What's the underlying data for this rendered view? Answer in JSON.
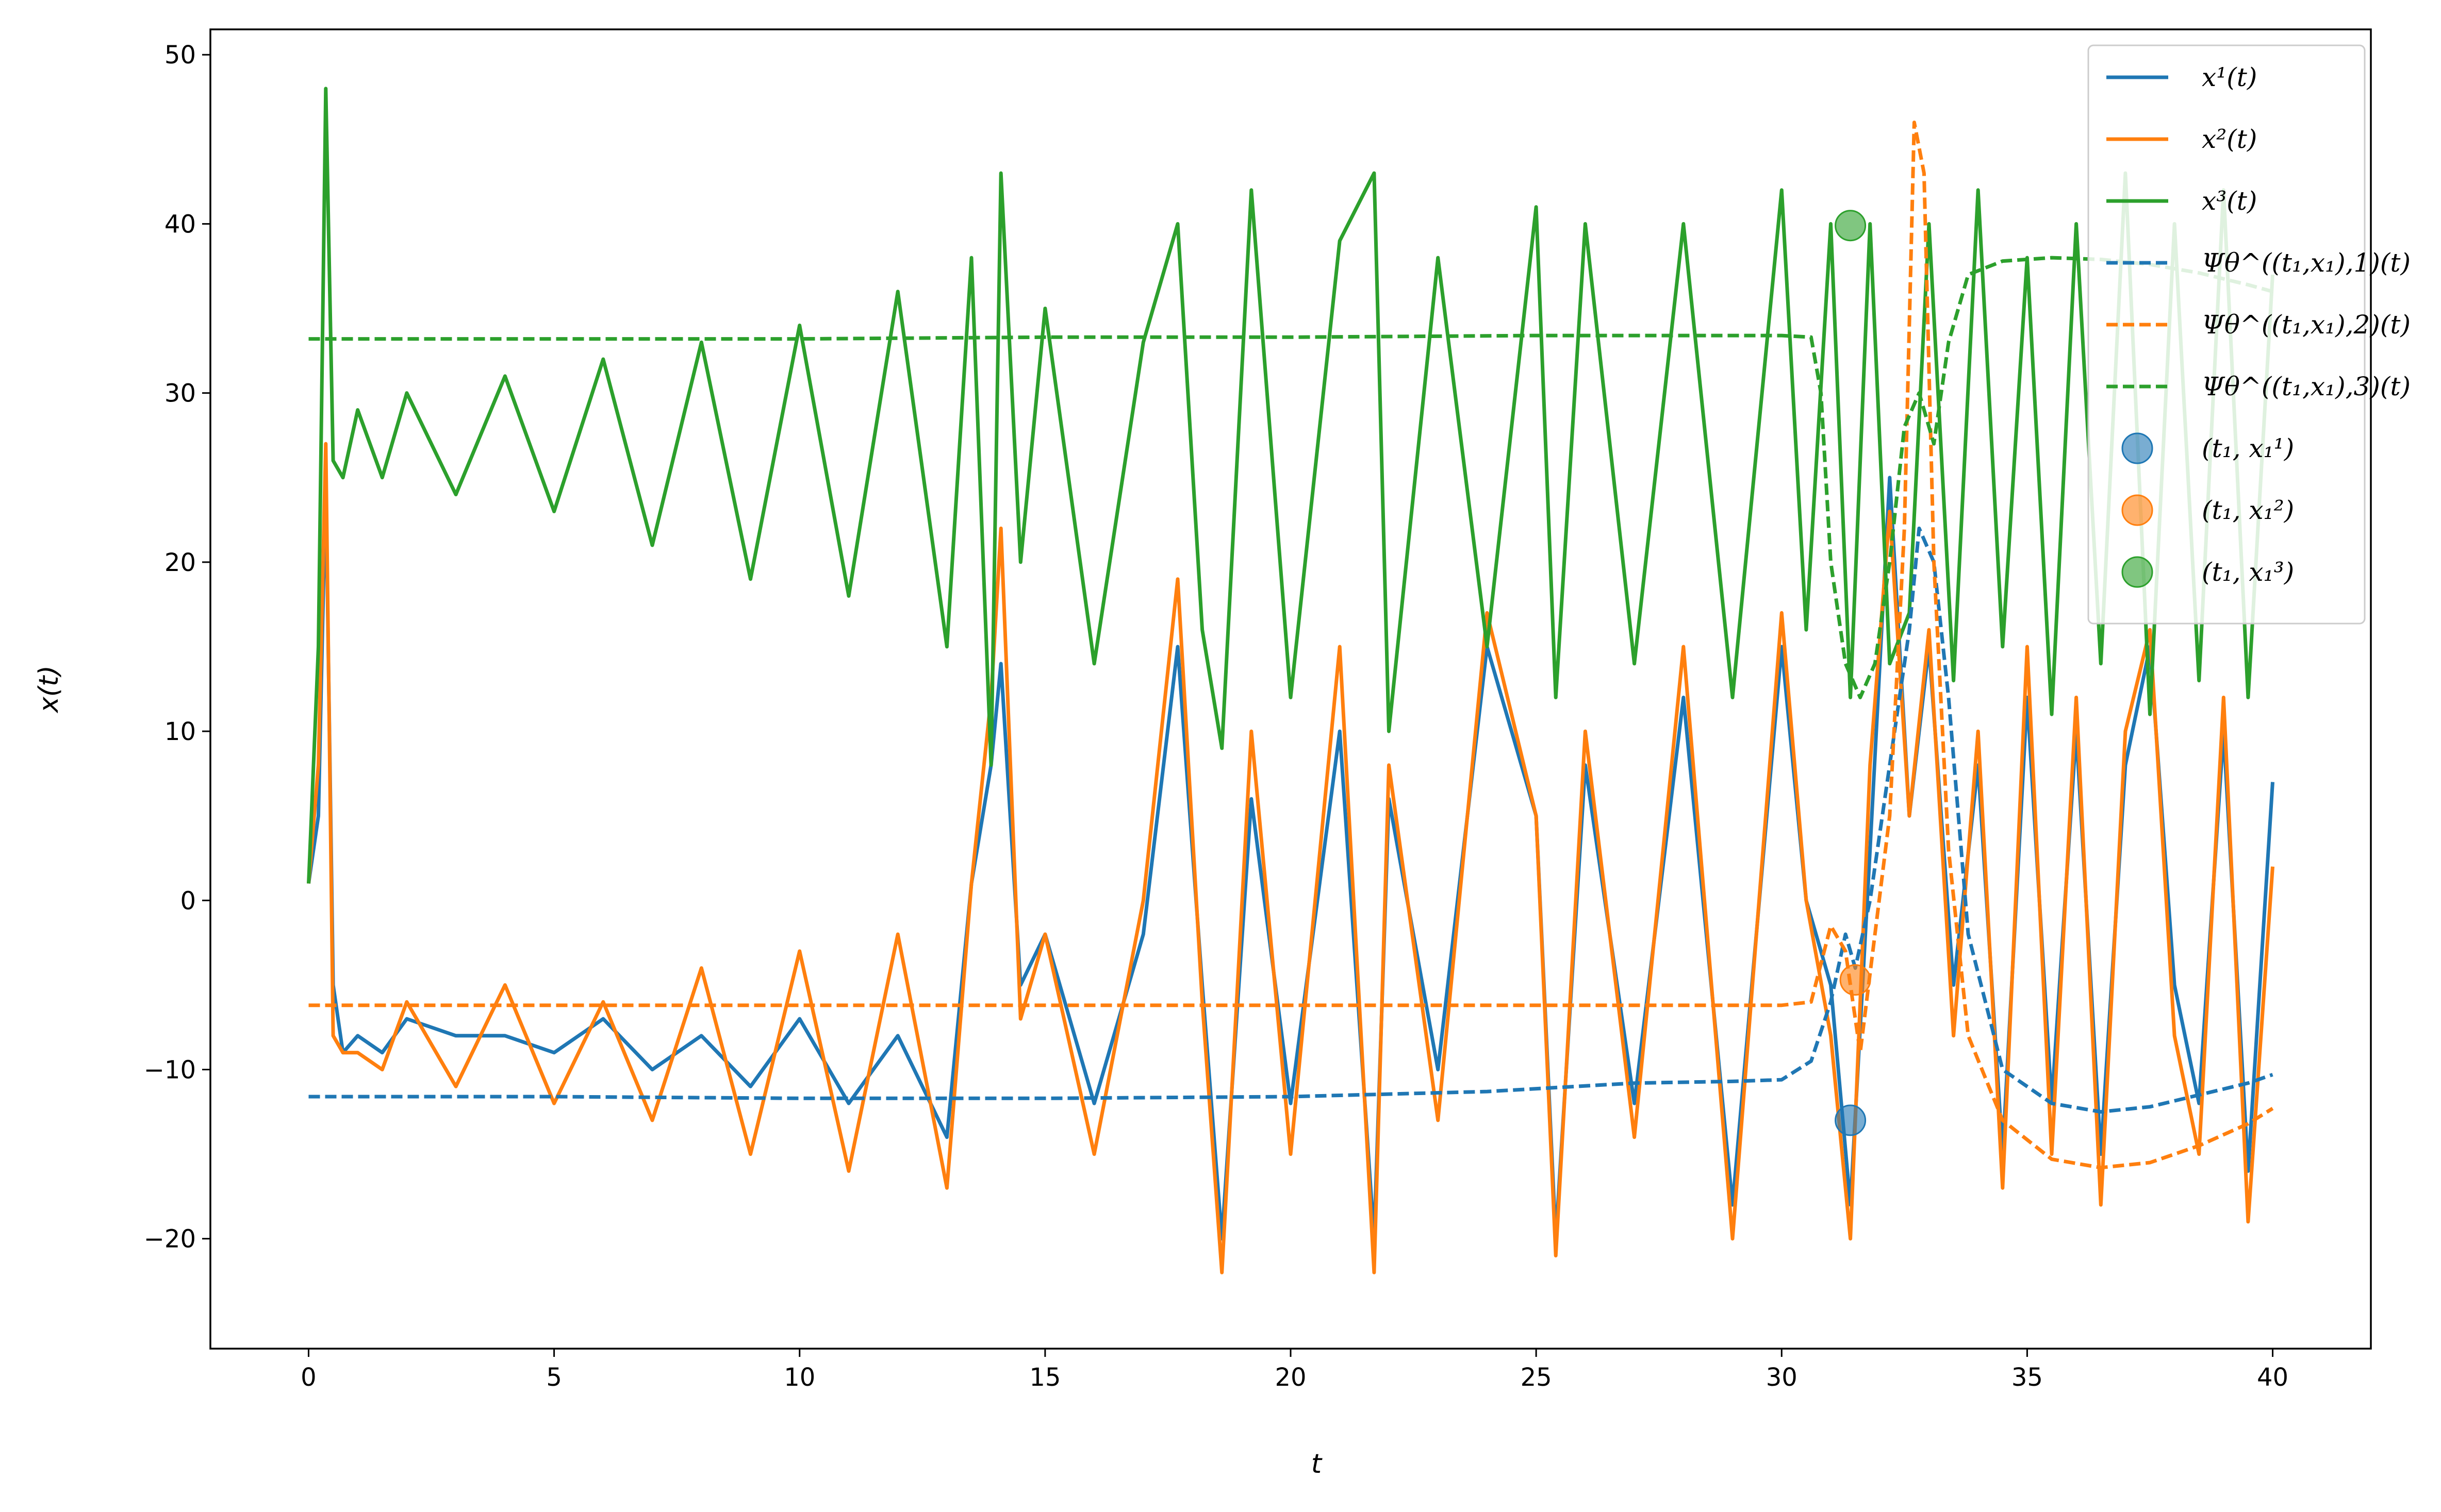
{
  "chart_data": {
    "type": "line",
    "title": "",
    "xlabel": "t",
    "ylabel": "x(t)",
    "xlim": [
      -2,
      42
    ],
    "ylim": [
      -26.5,
      51.5
    ],
    "xticks": [
      0,
      5,
      10,
      15,
      20,
      25,
      30,
      35,
      40
    ],
    "yticks": [
      -20,
      -10,
      0,
      10,
      20,
      30,
      40,
      50
    ],
    "xtick_labels": [
      "0",
      "5",
      "10",
      "15",
      "20",
      "25",
      "30",
      "35",
      "40"
    ],
    "ytick_labels": [
      "−20",
      "−10",
      "0",
      "10",
      "20",
      "30",
      "40",
      "50"
    ],
    "grid": false,
    "legend_position": "top-right",
    "series": [
      {
        "name": "x¹(t)",
        "style": "solid",
        "color": "#1f77b4",
        "x": [
          0,
          0.2,
          0.35,
          0.5,
          0.7,
          1.0,
          1.5,
          2.0,
          3.0,
          4.0,
          5.0,
          6.0,
          7.0,
          8.0,
          9.0,
          10.0,
          11.0,
          12.0,
          13.0,
          13.5,
          13.9,
          14.1,
          14.5,
          15.0,
          16.0,
          17.0,
          17.7,
          18.2,
          18.6,
          19.2,
          20.0,
          21.0,
          21.7,
          22.0,
          23.0,
          24.0,
          25.0,
          25.4,
          26.0,
          27.0,
          28.0,
          29.0,
          30.0,
          30.5,
          31.0,
          31.4,
          31.8,
          32.2,
          32.6,
          33.0,
          33.5,
          34.0,
          34.5,
          35.0,
          35.5,
          36.0,
          36.5,
          37.0,
          37.5,
          38.0,
          38.5,
          39.0,
          39.5,
          40.0
        ],
        "values": [
          1,
          5,
          25,
          -5,
          -9,
          -8,
          -9,
          -7,
          -8,
          -8,
          -9,
          -7,
          -10,
          -8,
          -11,
          -7,
          -12,
          -8,
          -14,
          1,
          8,
          14,
          -5,
          -2,
          -12,
          -2,
          15,
          -5,
          -20,
          6,
          -12,
          10,
          -20,
          6,
          -10,
          15,
          5,
          -20,
          8,
          -12,
          12,
          -18,
          15,
          0,
          -5,
          -18,
          3,
          25,
          5,
          15,
          -5,
          8,
          -15,
          12,
          -12,
          10,
          -15,
          8,
          15,
          -5,
          -12,
          10,
          -16,
          7
        ]
      },
      {
        "name": "x²(t)",
        "style": "solid",
        "color": "#ff7f0e",
        "x": [
          0,
          0.2,
          0.35,
          0.5,
          0.7,
          1.0,
          1.5,
          2.0,
          3.0,
          4.0,
          5.0,
          6.0,
          7.0,
          8.0,
          9.0,
          10.0,
          11.0,
          12.0,
          13.0,
          13.5,
          13.9,
          14.1,
          14.5,
          15.0,
          16.0,
          17.0,
          17.7,
          18.2,
          18.6,
          19.2,
          20.0,
          21.0,
          21.7,
          22.0,
          23.0,
          24.0,
          25.0,
          25.4,
          26.0,
          27.0,
          28.0,
          29.0,
          30.0,
          30.5,
          31.0,
          31.4,
          31.8,
          32.2,
          32.6,
          33.0,
          33.5,
          34.0,
          34.5,
          35.0,
          35.5,
          36.0,
          36.5,
          37.0,
          37.5,
          38.0,
          38.5,
          39.0,
          39.5,
          40.0
        ],
        "values": [
          1,
          8,
          27,
          -8,
          -9,
          -9,
          -10,
          -6,
          -11,
          -5,
          -12,
          -6,
          -13,
          -4,
          -15,
          -3,
          -16,
          -2,
          -17,
          1,
          12,
          22,
          -7,
          -2,
          -15,
          0,
          19,
          -6,
          -22,
          10,
          -15,
          15,
          -22,
          8,
          -13,
          17,
          5,
          -21,
          10,
          -14,
          15,
          -20,
          17,
          0,
          -8,
          -20,
          8,
          23,
          5,
          16,
          -8,
          10,
          -17,
          15,
          -15,
          12,
          -18,
          10,
          16,
          -8,
          -15,
          12,
          -19,
          2
        ]
      },
      {
        "name": "x³(t)",
        "style": "solid",
        "color": "#2ca02c",
        "x": [
          0,
          0.2,
          0.35,
          0.5,
          0.7,
          1.0,
          1.5,
          2.0,
          3.0,
          4.0,
          5.0,
          6.0,
          7.0,
          8.0,
          9.0,
          10.0,
          11.0,
          12.0,
          13.0,
          13.5,
          13.9,
          14.1,
          14.5,
          15.0,
          16.0,
          17.0,
          17.7,
          18.2,
          18.6,
          19.2,
          20.0,
          21.0,
          21.7,
          22.0,
          23.0,
          24.0,
          25.0,
          25.4,
          26.0,
          27.0,
          28.0,
          29.0,
          30.0,
          30.5,
          31.0,
          31.4,
          31.8,
          32.2,
          32.6,
          33.0,
          33.5,
          34.0,
          34.5,
          35.0,
          35.5,
          36.0,
          36.5,
          37.0,
          37.5,
          38.0,
          38.5,
          39.0,
          39.5,
          40.0
        ],
        "values": [
          1,
          15,
          48,
          26,
          25,
          29,
          25,
          30,
          24,
          31,
          23,
          32,
          21,
          33,
          19,
          34,
          18,
          36,
          15,
          38,
          8,
          43,
          20,
          35,
          14,
          33,
          40,
          16,
          9,
          42,
          12,
          39,
          43,
          10,
          38,
          15,
          41,
          12,
          40,
          14,
          40,
          12,
          42,
          16,
          40,
          12,
          40,
          14,
          17,
          40,
          13,
          42,
          15,
          38,
          11,
          40,
          14,
          43,
          11,
          40,
          13,
          42,
          12,
          37
        ]
      },
      {
        "name": "Ψθ^((t₁,x₁),1)(t)",
        "style": "dashed",
        "color": "#1f77b4",
        "x": [
          0,
          5,
          10,
          15,
          20,
          24,
          27,
          29,
          30,
          30.6,
          31.0,
          31.3,
          31.5,
          31.8,
          32.2,
          32.6,
          32.8,
          33.1,
          33.4,
          33.8,
          34.5,
          35.5,
          36.5,
          37.5,
          38.5,
          39.5,
          40.0
        ],
        "values": [
          -11.6,
          -11.6,
          -11.7,
          -11.7,
          -11.6,
          -11.3,
          -10.8,
          -10.7,
          -10.6,
          -9.5,
          -6,
          -2,
          -4,
          0,
          8,
          16,
          22,
          20,
          12,
          -2,
          -10,
          -12,
          -12.5,
          -12.2,
          -11.5,
          -10.8,
          -10.3
        ]
      },
      {
        "name": "Ψθ^((t₁,x₁),2)(t)",
        "style": "dashed",
        "color": "#ff7f0e",
        "x": [
          0,
          5,
          10,
          15,
          20,
          25,
          29,
          30,
          30.6,
          31.0,
          31.3,
          31.6,
          31.9,
          32.2,
          32.5,
          32.7,
          32.9,
          33.1,
          33.4,
          33.8,
          34.5,
          35.5,
          36.5,
          37.5,
          38.5,
          39.5,
          40.0
        ],
        "values": [
          -6.2,
          -6.2,
          -6.2,
          -6.2,
          -6.2,
          -6.2,
          -6.2,
          -6.2,
          -6,
          -1.5,
          -3,
          -9,
          -2,
          5,
          22,
          46,
          43,
          20,
          3,
          -8,
          -13,
          -15.3,
          -15.8,
          -15.5,
          -14.5,
          -13.2,
          -12.3
        ]
      },
      {
        "name": "Ψθ^((t₁,x₁),3)(t)",
        "style": "dashed",
        "color": "#2ca02c",
        "x": [
          0,
          5,
          10,
          15,
          20,
          25,
          29,
          30,
          30.6,
          30.8,
          31.0,
          31.3,
          31.6,
          31.9,
          32.2,
          32.5,
          32.8,
          33.1,
          33.4,
          33.8,
          34.5,
          35.5,
          36.5,
          37.5,
          38.5,
          39.5,
          40.0
        ],
        "values": [
          33.2,
          33.2,
          33.2,
          33.3,
          33.3,
          33.4,
          33.4,
          33.4,
          33.3,
          30,
          20,
          14,
          12,
          14,
          20,
          28,
          30,
          27,
          33,
          37,
          37.8,
          38,
          37.9,
          37.6,
          37.1,
          36.4,
          36.0
        ]
      }
    ],
    "points": [
      {
        "name": "(t₁, x₁¹)",
        "x": 31.4,
        "y": -13.0,
        "color": "#1f77b4"
      },
      {
        "name": "(t₁, x₁²)",
        "x": 31.5,
        "y": -4.7,
        "color": "#ff7f0e"
      },
      {
        "name": "(t₁, x₁³)",
        "x": 31.4,
        "y": 39.9,
        "color": "#2ca02c"
      }
    ]
  }
}
